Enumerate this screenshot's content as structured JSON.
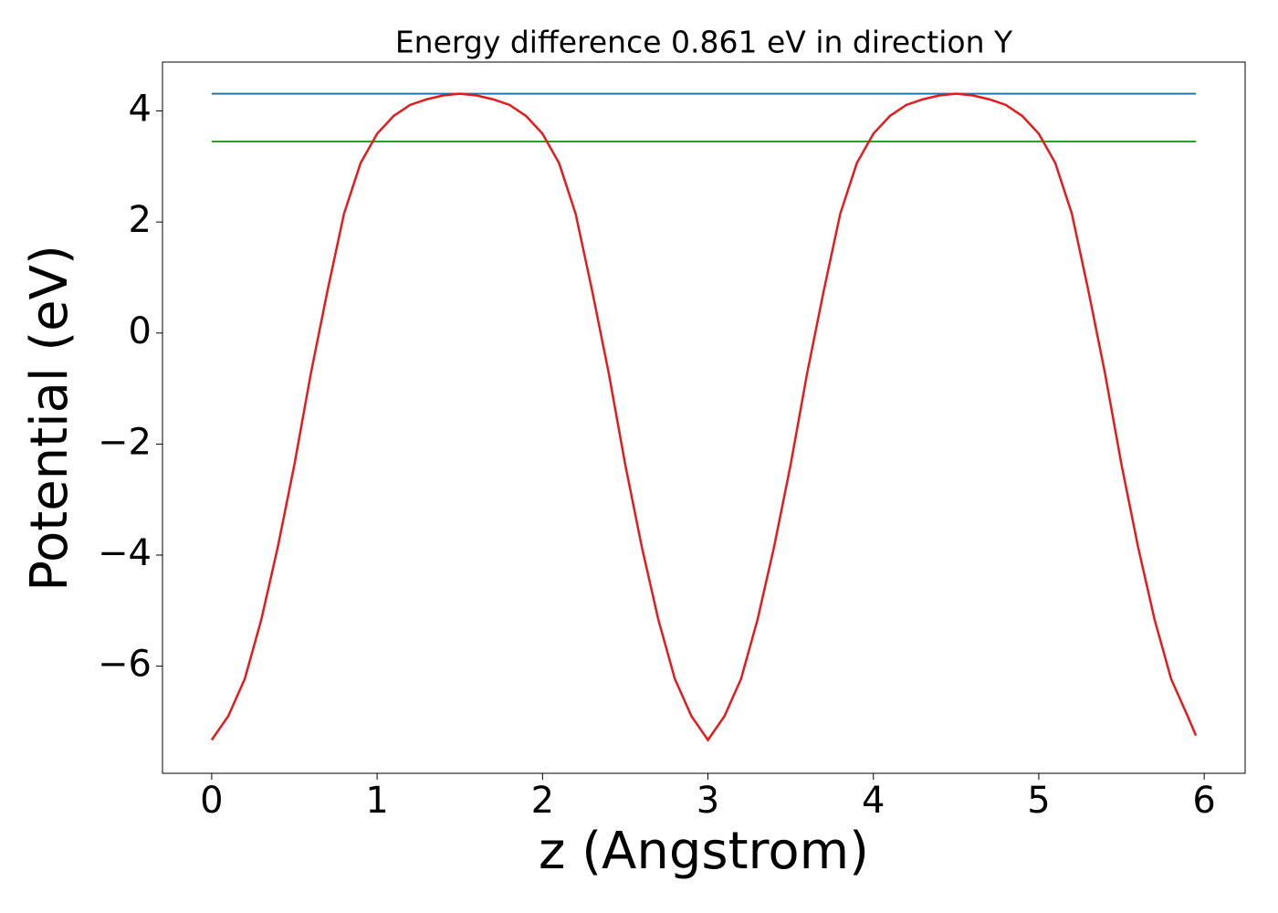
{
  "chart_data": {
    "type": "line",
    "title": "Energy difference 0.861 eV in direction Y",
    "x_label": "z (Angstrom)",
    "y_label": "Potential (eV)",
    "x": [
      0,
      0.1,
      0.2,
      0.3,
      0.4,
      0.5,
      0.6,
      0.7,
      0.8,
      0.9,
      1.0,
      1.1,
      1.2,
      1.3,
      1.4,
      1.5,
      1.6,
      1.7,
      1.8,
      1.9,
      2.0,
      2.1,
      2.2,
      2.3,
      2.4,
      2.5,
      2.6,
      2.7,
      2.8,
      2.9,
      3.0,
      3.1,
      3.2,
      3.3,
      3.4,
      3.5,
      3.6,
      3.7,
      3.8,
      3.9,
      4.0,
      4.1,
      4.2,
      4.3,
      4.4,
      4.5,
      4.6,
      4.7,
      4.8,
      4.9,
      5.0,
      5.1,
      5.2,
      5.3,
      5.4,
      5.5,
      5.6,
      5.7,
      5.8,
      5.9,
      5.95
    ],
    "series": [
      {
        "color": "#e41a1c",
        "values": [
          -7.33,
          -6.9,
          -6.23,
          -5.16,
          -3.85,
          -2.37,
          -0.72,
          0.76,
          2.15,
          3.06,
          3.59,
          3.91,
          4.11,
          4.21,
          4.28,
          4.31,
          4.28,
          4.21,
          4.11,
          3.91,
          3.59,
          3.06,
          2.15,
          0.76,
          -0.72,
          -2.37,
          -3.85,
          -5.16,
          -6.23,
          -6.9,
          -7.33,
          -6.9,
          -6.23,
          -5.16,
          -3.85,
          -2.37,
          -0.72,
          0.76,
          2.15,
          3.06,
          3.59,
          3.91,
          4.11,
          4.21,
          4.28,
          4.31,
          4.28,
          4.21,
          4.11,
          3.91,
          3.59,
          3.06,
          2.15,
          0.76,
          -0.72,
          -2.37,
          -3.85,
          -5.16,
          -6.23,
          -6.9,
          -7.25
        ]
      }
    ],
    "hlines": [
      {
        "y": 4.31,
        "xmin": 0,
        "xmax": 5.95,
        "color": "#1f77b4"
      },
      {
        "y": 3.449,
        "xmin": 0,
        "xmax": 5.95,
        "color": "#2ca02c"
      }
    ],
    "xlim": [
      -0.2975,
      6.2475
    ],
    "ylim": [
      -7.93,
      4.88
    ],
    "xticks": [
      0,
      1,
      2,
      3,
      4,
      5,
      6
    ],
    "yticks": [
      {
        "value": -6,
        "label": "−6"
      },
      {
        "value": -4,
        "label": "−4"
      },
      {
        "value": -2,
        "label": "−2"
      },
      0,
      2,
      4
    ],
    "grid": false
  }
}
